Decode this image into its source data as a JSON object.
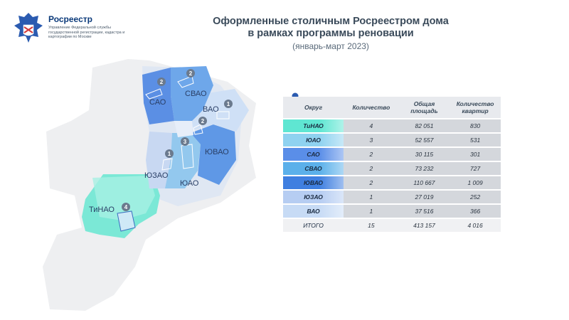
{
  "header": {
    "org_name": "Росреестр",
    "org_sub": "Управление Федеральной службы государственной регистрации, кадастра и картографии по Москве"
  },
  "title_line1": "Оформленные столичным Росреестром дома",
  "title_line2": "в рамках программы реновации",
  "subtitle": "(январь-март 2023)",
  "map": {
    "labels": {
      "sao": "САО",
      "svao": "СВАО",
      "vao": "ВАО",
      "yuvao": "ЮВАО",
      "yuao": "ЮАО",
      "yuzao": "ЮЗАО",
      "tinao": "ТиНАО"
    },
    "markers": {
      "sao": "2",
      "svao": "2",
      "vao": "1",
      "yuvao": "2",
      "yuao": "3",
      "yuzao": "1",
      "tinao": "4"
    }
  },
  "table": {
    "headers": [
      "Округ",
      "Количество",
      "Общая площадь",
      "Количество квартир"
    ],
    "rows": [
      {
        "district": "ТиНАО",
        "count": "4",
        "area": "82 051",
        "flats": "830",
        "color": "#5fe6d2"
      },
      {
        "district": "ЮАО",
        "count": "3",
        "area": "52 557",
        "flats": "531",
        "color": "#8fd2f0"
      },
      {
        "district": "САО",
        "count": "2",
        "area": "30 115",
        "flats": "301",
        "color": "#5a8ee8"
      },
      {
        "district": "СВАО",
        "count": "2",
        "area": "73 232",
        "flats": "727",
        "color": "#5bb0ea"
      },
      {
        "district": "ЮВАО",
        "count": "2",
        "area": "110 667",
        "flats": "1 009",
        "color": "#3f7fe0"
      },
      {
        "district": "ЮЗАО",
        "count": "1",
        "area": "27 019",
        "flats": "252",
        "color": "#b6cdf2"
      },
      {
        "district": "ВАО",
        "count": "1",
        "area": "37 516",
        "flats": "366",
        "color": "#c7dbf5"
      }
    ],
    "total": {
      "district": "ИТОГО",
      "count": "15",
      "area": "413 157",
      "flats": "4 016"
    }
  }
}
